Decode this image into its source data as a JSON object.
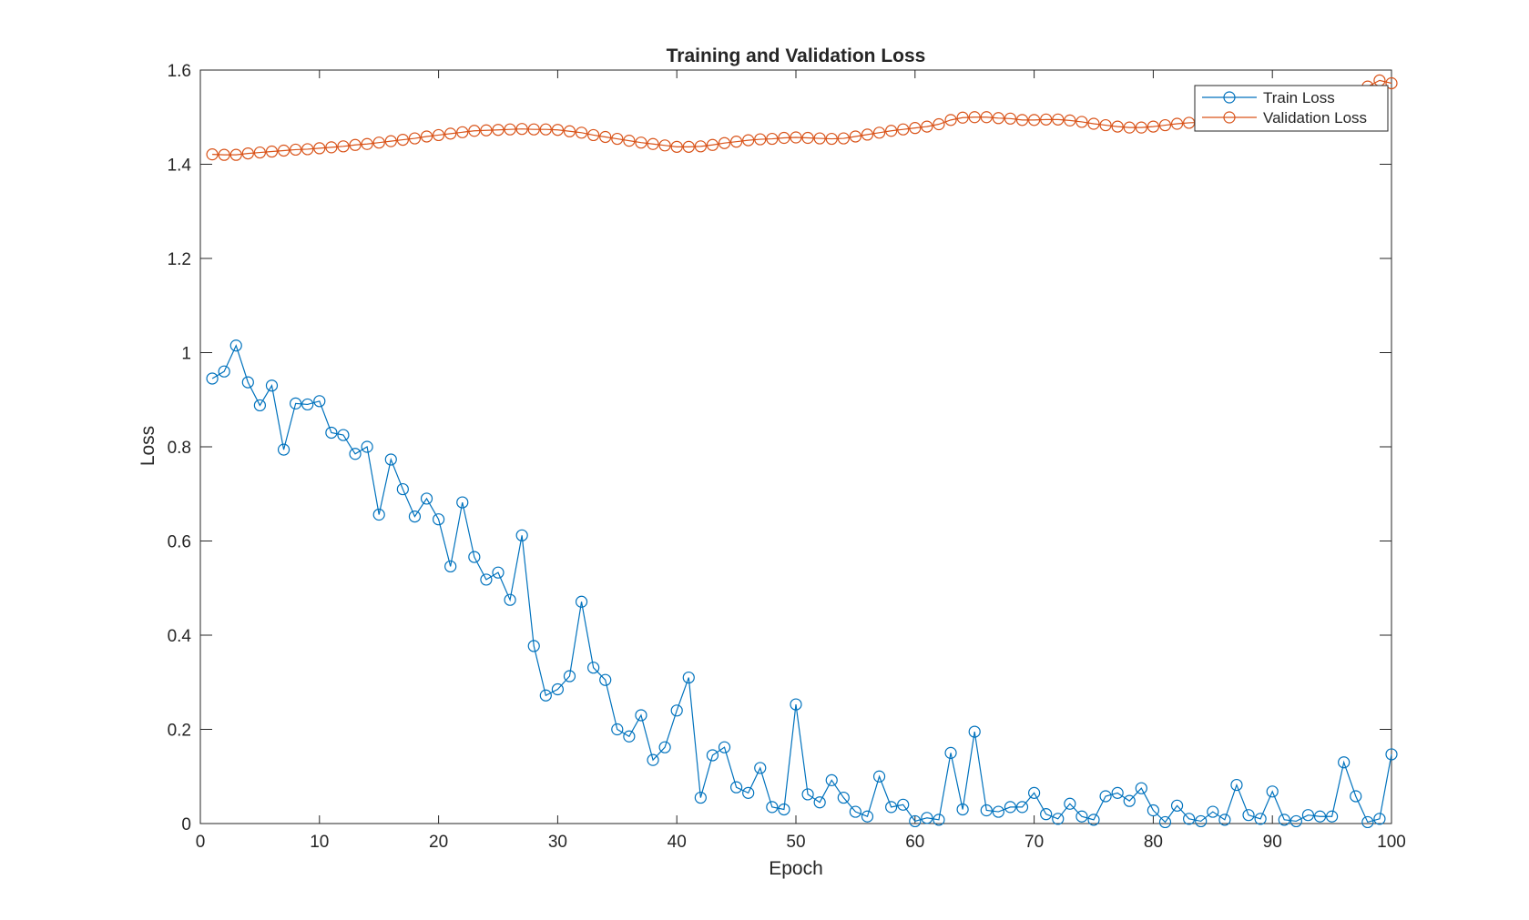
{
  "chart_data": {
    "type": "line",
    "title": "Training and Validation Loss",
    "xlabel": "Epoch",
    "ylabel": "Loss",
    "xlim": [
      0,
      100
    ],
    "ylim": [
      0,
      1.6
    ],
    "xticks": [
      "0",
      "10",
      "20",
      "30",
      "40",
      "50",
      "60",
      "70",
      "80",
      "90",
      "100"
    ],
    "yticks": [
      "0",
      "0.2",
      "0.4",
      "0.6",
      "0.8",
      "1",
      "1.2",
      "1.4",
      "1.6"
    ],
    "grid": false,
    "legend_position": "top-right",
    "marker": "circle-open",
    "x": [
      1,
      2,
      3,
      4,
      5,
      6,
      7,
      8,
      9,
      10,
      11,
      12,
      13,
      14,
      15,
      16,
      17,
      18,
      19,
      20,
      21,
      22,
      23,
      24,
      25,
      26,
      27,
      28,
      29,
      30,
      31,
      32,
      33,
      34,
      35,
      36,
      37,
      38,
      39,
      40,
      41,
      42,
      43,
      44,
      45,
      46,
      47,
      48,
      49,
      50,
      51,
      52,
      53,
      54,
      55,
      56,
      57,
      58,
      59,
      60,
      61,
      62,
      63,
      64,
      65,
      66,
      67,
      68,
      69,
      70,
      71,
      72,
      73,
      74,
      75,
      76,
      77,
      78,
      79,
      80,
      81,
      82,
      83,
      84,
      85,
      86,
      87,
      88,
      89,
      90,
      91,
      92,
      93,
      94,
      95,
      96,
      97,
      98,
      99,
      100
    ],
    "series": [
      {
        "name": "Train Loss",
        "color": "#0072BD",
        "values": [
          0.945,
          0.96,
          1.015,
          0.937,
          0.888,
          0.93,
          0.794,
          0.892,
          0.89,
          0.897,
          0.83,
          0.825,
          0.785,
          0.8,
          0.656,
          0.773,
          0.71,
          0.652,
          0.69,
          0.646,
          0.546,
          0.682,
          0.566,
          0.518,
          0.533,
          0.475,
          0.612,
          0.377,
          0.272,
          0.285,
          0.313,
          0.471,
          0.331,
          0.305,
          0.2,
          0.185,
          0.23,
          0.135,
          0.162,
          0.24,
          0.31,
          0.055,
          0.145,
          0.162,
          0.077,
          0.065,
          0.118,
          0.035,
          0.03,
          0.253,
          0.062,
          0.045,
          0.092,
          0.055,
          0.025,
          0.015,
          0.1,
          0.035,
          0.04,
          0.005,
          0.012,
          0.008,
          0.15,
          0.03,
          0.195,
          0.028,
          0.025,
          0.035,
          0.035,
          0.065,
          0.02,
          0.01,
          0.042,
          0.015,
          0.008,
          0.058,
          0.065,
          0.048,
          0.075,
          0.028,
          0.003,
          0.038,
          0.01,
          0.005,
          0.025,
          0.008,
          0.082,
          0.018,
          0.01,
          0.068,
          0.008,
          0.005,
          0.018,
          0.015,
          0.015,
          0.13,
          0.058,
          0.003,
          0.01,
          0.147
        ]
      },
      {
        "name": "Validation Loss",
        "color": "#D95319",
        "values": [
          1.421,
          1.42,
          1.42,
          1.423,
          1.425,
          1.427,
          1.429,
          1.431,
          1.432,
          1.434,
          1.436,
          1.438,
          1.441,
          1.443,
          1.446,
          1.449,
          1.452,
          1.455,
          1.459,
          1.462,
          1.465,
          1.468,
          1.471,
          1.472,
          1.473,
          1.474,
          1.475,
          1.474,
          1.474,
          1.473,
          1.47,
          1.467,
          1.462,
          1.458,
          1.454,
          1.45,
          1.446,
          1.443,
          1.44,
          1.437,
          1.437,
          1.438,
          1.441,
          1.445,
          1.448,
          1.451,
          1.453,
          1.454,
          1.456,
          1.457,
          1.456,
          1.455,
          1.454,
          1.455,
          1.459,
          1.463,
          1.467,
          1.471,
          1.474,
          1.477,
          1.48,
          1.485,
          1.494,
          1.499,
          1.5,
          1.5,
          1.498,
          1.497,
          1.494,
          1.494,
          1.495,
          1.495,
          1.493,
          1.49,
          1.486,
          1.483,
          1.48,
          1.478,
          1.478,
          1.48,
          1.483,
          1.486,
          1.488,
          1.489,
          1.49,
          1.492,
          1.495,
          1.5,
          1.505,
          1.51,
          1.515,
          1.52,
          1.525,
          1.53,
          1.536,
          1.545,
          1.553,
          1.565,
          1.578,
          1.572
        ]
      }
    ]
  }
}
